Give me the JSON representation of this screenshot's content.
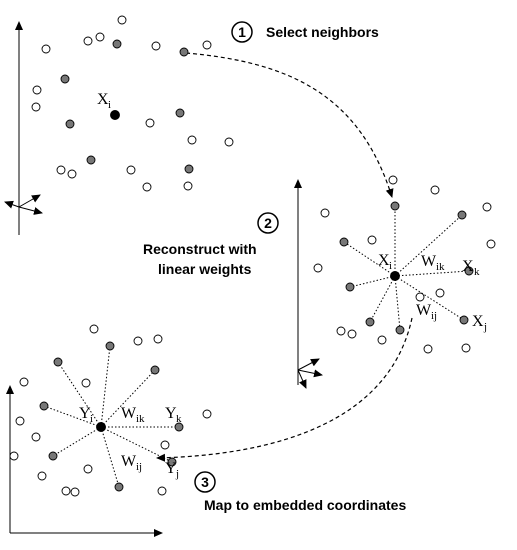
{
  "steps": [
    {
      "number": "1",
      "label": "Select neighbors"
    },
    {
      "number": "2",
      "label_line1": "Reconstruct with",
      "label_line2": "linear weights"
    },
    {
      "number": "3",
      "label": "Map to embedded coordinates"
    }
  ],
  "panel1": {
    "point_label": {
      "base": "X",
      "sub": "i"
    }
  },
  "panel2": {
    "center_label": {
      "base": "X",
      "sub": "i"
    },
    "weight_k": {
      "base": "W",
      "sub": "ik"
    },
    "weight_j": {
      "base": "W",
      "sub": "ij"
    },
    "neighbor_k": {
      "base": "X",
      "sub": "k"
    },
    "neighbor_j": {
      "base": "X",
      "sub": "j"
    }
  },
  "panel3": {
    "center_label": {
      "base": "Y",
      "sub": "i"
    },
    "weight_k": {
      "base": "W",
      "sub": "ik"
    },
    "weight_j": {
      "base": "W",
      "sub": "ij"
    },
    "neighbor_k": {
      "base": "Y",
      "sub": "k"
    },
    "neighbor_j": {
      "base": "Y",
      "sub": "j"
    }
  },
  "colors": {
    "open_point": "#ffffff",
    "neighbor_point": "#777777",
    "center_point": "#000000"
  }
}
